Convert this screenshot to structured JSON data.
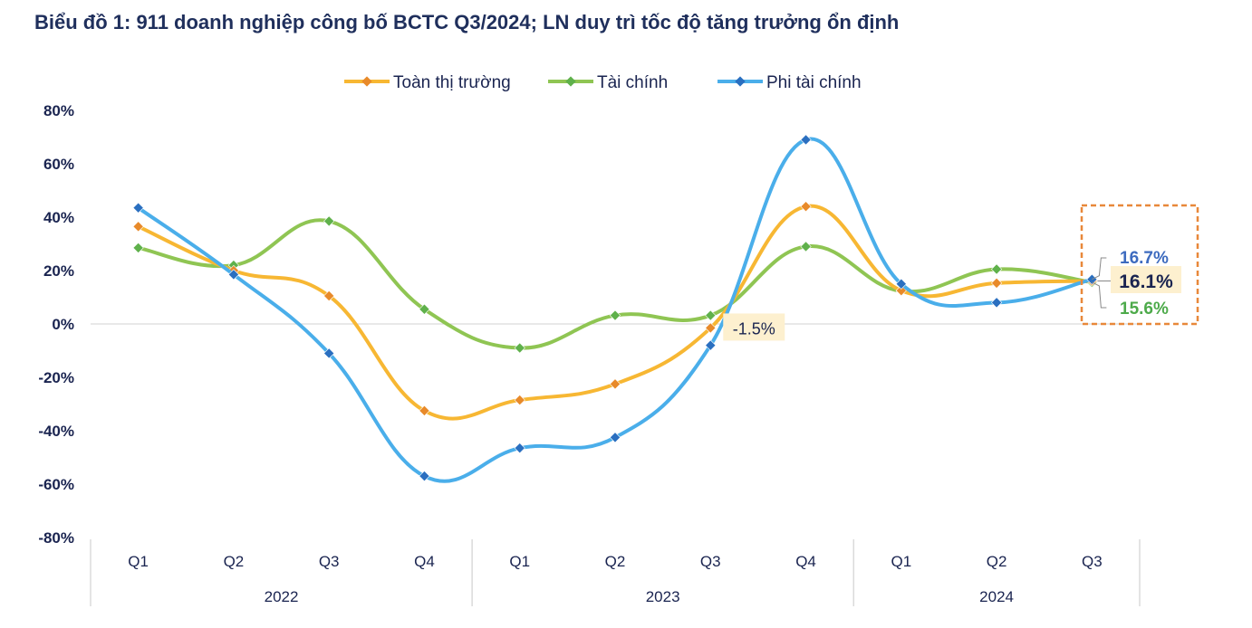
{
  "chart_data": {
    "type": "line",
    "title": "Biểu đồ 1: 911 doanh nghiệp công bố BCTC Q3/2024; LN duy trì tốc độ tăng trưởng ổn định",
    "categories": [
      "Q1",
      "Q2",
      "Q3",
      "Q4",
      "Q1",
      "Q2",
      "Q3",
      "Q4",
      "Q1",
      "Q2",
      "Q3"
    ],
    "groups": [
      {
        "label": "2022",
        "count": 4
      },
      {
        "label": "2023",
        "count": 4
      },
      {
        "label": "2024",
        "count": 3
      }
    ],
    "ylim": [
      -80,
      80
    ],
    "yticks": [
      80,
      60,
      40,
      20,
      0,
      -20,
      -40,
      -60,
      -80
    ],
    "ytick_labels": [
      "80%",
      "60%",
      "40%",
      "20%",
      "0%",
      "-20%",
      "-40%",
      "-60%",
      "-80%"
    ],
    "series": [
      {
        "name": "Toàn thị trường",
        "color": "#f7b733",
        "marker": "#e88a2a",
        "values": [
          36.5,
          20,
          10.5,
          -32.5,
          -28.5,
          -22.5,
          -1.5,
          44,
          12.5,
          15.3,
          16.1
        ]
      },
      {
        "name": "Tài chính",
        "color": "#8fc553",
        "marker": "#5fb14b",
        "values": [
          28.5,
          22,
          38.5,
          5.5,
          -9,
          3.2,
          3.2,
          29,
          12.3,
          20.5,
          15.6
        ]
      },
      {
        "name": "Phi tài chính",
        "color": "#4aaeea",
        "marker": "#2a6fc0",
        "values": [
          43.5,
          18.5,
          -11,
          -57,
          -46.5,
          -42.5,
          -8,
          69,
          15,
          8,
          16.7
        ]
      }
    ],
    "annotations": [
      {
        "label": "-1.5%",
        "series": "Toàn thị trường",
        "index": 6
      },
      {
        "label": "16.7%",
        "series": "Phi tài chính",
        "index": 10,
        "color": "#3d6bbf"
      },
      {
        "label": "16.1%",
        "series": "Toàn thị trường",
        "index": 10,
        "color": "#1a2450"
      },
      {
        "label": "15.6%",
        "series": "Tài chính",
        "index": 10,
        "color": "#4daa4a"
      }
    ]
  }
}
